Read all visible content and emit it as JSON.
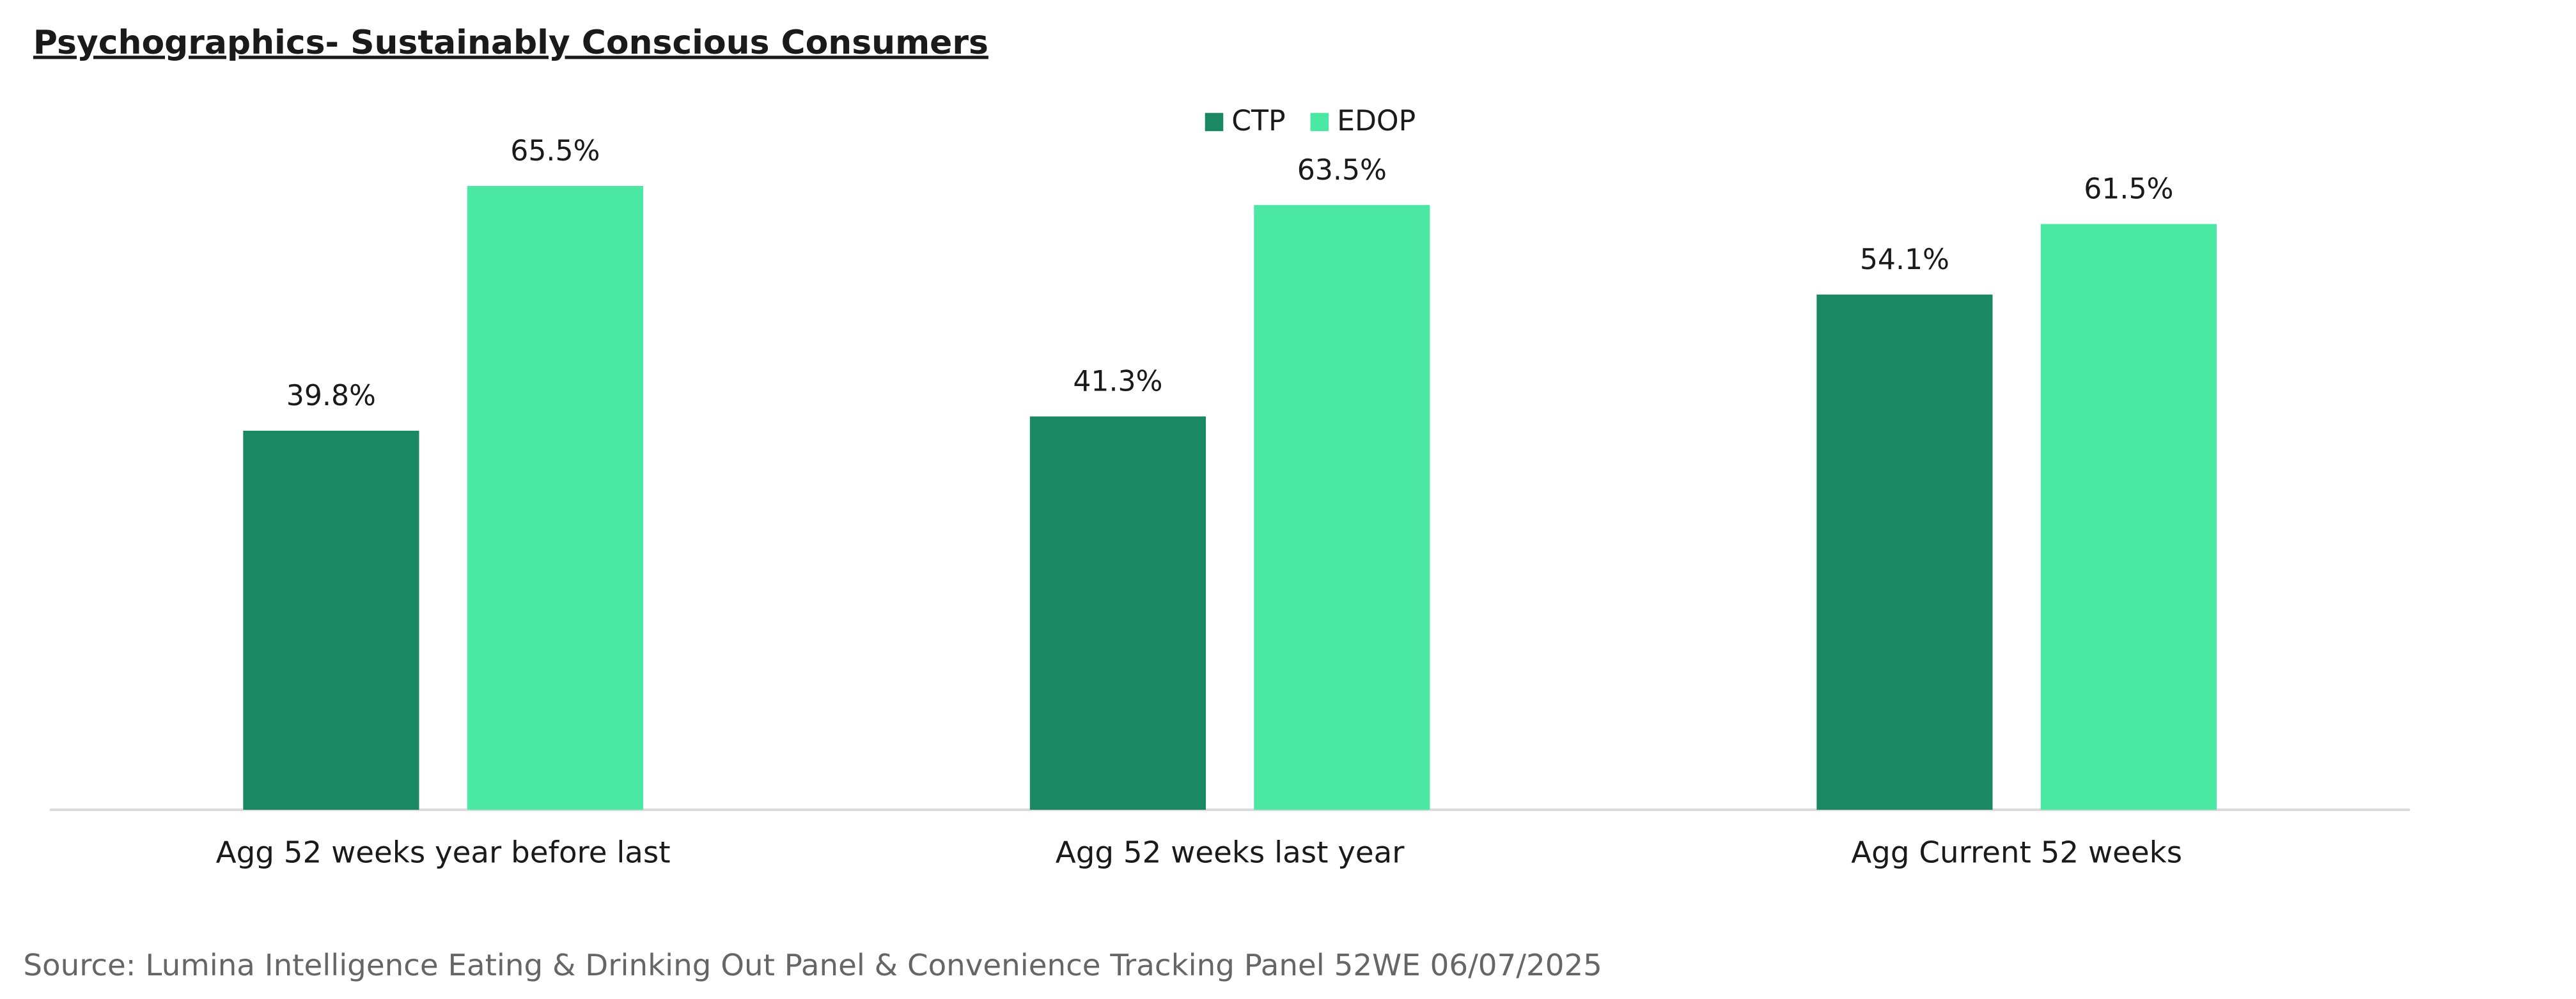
{
  "chart_data": {
    "type": "bar",
    "title": "Psychographics- Sustainably Conscious Consumers",
    "categories": [
      "Agg 52 weeks year before last",
      "Agg 52 weeks last year",
      "Agg Current 52 weeks"
    ],
    "series": [
      {
        "name": "CTP",
        "color": "#1a8862",
        "values": [
          39.8,
          41.3,
          54.1
        ],
        "value_labels": [
          "39.8%",
          "41.3%",
          "54.1%"
        ]
      },
      {
        "name": "EDOP",
        "color": "#4ae8a3",
        "values": [
          65.5,
          63.5,
          61.5
        ],
        "value_labels": [
          "65.5%",
          "63.5%",
          "61.5%"
        ]
      }
    ],
    "legend": "top",
    "source": "Source: Lumina Intelligence Eating & Drinking Out Panel & Convenience Tracking Panel 52WE 06/07/2025"
  }
}
